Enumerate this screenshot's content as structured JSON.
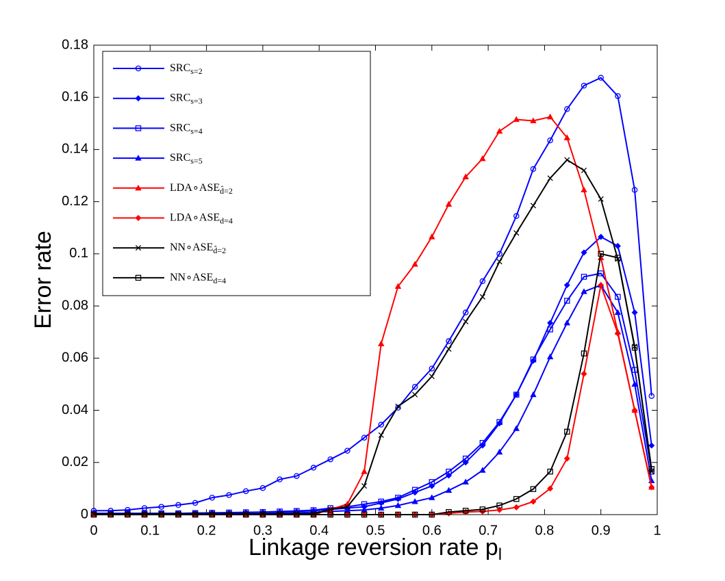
{
  "chart_data": {
    "type": "line",
    "xlabel": "Linkage reversion rate p",
    "xlabel_subscript": "l",
    "ylabel": "Error rate",
    "x": [
      0,
      0.03,
      0.06,
      0.09,
      0.12,
      0.15,
      0.18,
      0.21,
      0.24,
      0.27,
      0.3,
      0.33,
      0.36,
      0.39,
      0.42,
      0.45,
      0.48,
      0.51,
      0.54,
      0.57,
      0.6,
      0.63,
      0.66,
      0.69,
      0.72,
      0.75,
      0.78,
      0.81,
      0.84,
      0.87,
      0.9,
      0.93,
      0.96,
      0.99
    ],
    "xlim": [
      0,
      1
    ],
    "xticks": [
      0,
      0.1,
      0.2,
      0.3,
      0.4,
      0.5,
      0.6,
      0.7,
      0.8,
      0.9,
      1
    ],
    "ylim": [
      0,
      0.18
    ],
    "yticks": [
      0,
      0.02,
      0.04,
      0.06,
      0.08,
      0.1,
      0.12,
      0.14,
      0.16,
      0.18
    ],
    "grid": false,
    "legend": "upper left",
    "series": [
      {
        "name": "SRC",
        "subscript": "s=2",
        "color": "#0000ff",
        "marker": "circle",
        "values": [
          0.0015,
          0.0015,
          0.0018,
          0.0025,
          0.003,
          0.0037,
          0.0045,
          0.0065,
          0.0075,
          0.009,
          0.0102,
          0.0135,
          0.0148,
          0.018,
          0.0212,
          0.0245,
          0.0295,
          0.0345,
          0.041,
          0.049,
          0.056,
          0.0665,
          0.0775,
          0.0895,
          0.1,
          0.1145,
          0.1325,
          0.1435,
          0.1555,
          0.1645,
          0.1675,
          0.1605,
          0.1245,
          0.0455
        ]
      },
      {
        "name": "SRC",
        "subscript": "s=3",
        "color": "#0000ff",
        "marker": "diamond",
        "values": [
          0.0005,
          0.0005,
          0.0005,
          0.0005,
          0.0005,
          0.0005,
          0.0006,
          0.0006,
          0.0007,
          0.0008,
          0.0009,
          0.001,
          0.0012,
          0.0015,
          0.002,
          0.0025,
          0.003,
          0.0045,
          0.006,
          0.0085,
          0.011,
          0.015,
          0.02,
          0.0265,
          0.035,
          0.046,
          0.059,
          0.0735,
          0.088,
          0.1005,
          0.1065,
          0.103,
          0.0775,
          0.0265
        ]
      },
      {
        "name": "SRC",
        "subscript": "s=4",
        "color": "#0000ff",
        "marker": "square",
        "values": [
          0.0005,
          0.0005,
          0.0005,
          0.0005,
          0.0005,
          0.0005,
          0.0006,
          0.0007,
          0.0008,
          0.0009,
          0.001,
          0.0012,
          0.0014,
          0.0017,
          0.0025,
          0.003,
          0.004,
          0.005,
          0.0065,
          0.0095,
          0.0125,
          0.0165,
          0.0215,
          0.0275,
          0.0355,
          0.046,
          0.0595,
          0.071,
          0.082,
          0.0912,
          0.0925,
          0.0835,
          0.0555,
          0.0165
        ]
      },
      {
        "name": "SRC",
        "subscript": "s=5",
        "color": "#0000ff",
        "marker": "triangle",
        "values": [
          0.0003,
          0.0003,
          0.0003,
          0.0003,
          0.0003,
          0.0003,
          0.0003,
          0.0003,
          0.0003,
          0.0003,
          0.0003,
          0.0005,
          0.0007,
          0.0009,
          0.0012,
          0.0015,
          0.0018,
          0.0025,
          0.0035,
          0.005,
          0.0065,
          0.0093,
          0.0125,
          0.017,
          0.024,
          0.033,
          0.046,
          0.0605,
          0.0735,
          0.0855,
          0.088,
          0.0775,
          0.05,
          0.013
        ]
      },
      {
        "name": "LDA∘ASE",
        "subscript": "d̂=2",
        "color": "#ff0000",
        "marker": "triangle",
        "values": [
          0,
          0,
          0,
          0,
          0,
          0,
          0,
          0,
          0,
          0,
          0,
          0,
          0,
          0,
          0.002,
          0.004,
          0.0165,
          0.0655,
          0.0875,
          0.096,
          0.1065,
          0.119,
          0.1295,
          0.1365,
          0.147,
          0.1515,
          0.151,
          0.1525,
          0.1445,
          0.1245,
          0.0985,
          0.07,
          0.04,
          0.0105
        ]
      },
      {
        "name": "LDA∘ASE",
        "subscript": "d=4",
        "color": "#ff0000",
        "marker": "diamond",
        "values": [
          0,
          0,
          0,
          0,
          0,
          0,
          0,
          0,
          0,
          0,
          0,
          0,
          0,
          0,
          0,
          0,
          0,
          0,
          0,
          0,
          0,
          0.0005,
          0.001,
          0.0012,
          0.0018,
          0.0028,
          0.005,
          0.01,
          0.0215,
          0.054,
          0.088,
          0.0695,
          0.04,
          0.0105
        ]
      },
      {
        "name": "NN∘ASE",
        "subscript": "d̂=2",
        "color": "#000000",
        "marker": "x",
        "values": [
          0.0003,
          0.0003,
          0.0003,
          0.0003,
          0.0003,
          0.0003,
          0.0003,
          0.0003,
          0.0003,
          0.0003,
          0.0003,
          0.0003,
          0.0003,
          0.0003,
          0.002,
          0.003,
          0.011,
          0.0305,
          0.0415,
          0.046,
          0.053,
          0.0635,
          0.074,
          0.0835,
          0.097,
          0.108,
          0.1185,
          0.129,
          0.136,
          0.132,
          0.121,
          0.098,
          0.0645,
          0.0165
        ]
      },
      {
        "name": "NN∘ASE",
        "subscript": "d=4",
        "color": "#000000",
        "marker": "square",
        "values": [
          0,
          0,
          0,
          0,
          0,
          0,
          0,
          0,
          0,
          0,
          0,
          0,
          0,
          0,
          0,
          0,
          0,
          0,
          0,
          0,
          0,
          0.001,
          0.0015,
          0.002,
          0.0035,
          0.006,
          0.0098,
          0.0165,
          0.0318,
          0.0618,
          0.1,
          0.0985,
          0.064,
          0.0175
        ]
      }
    ]
  }
}
